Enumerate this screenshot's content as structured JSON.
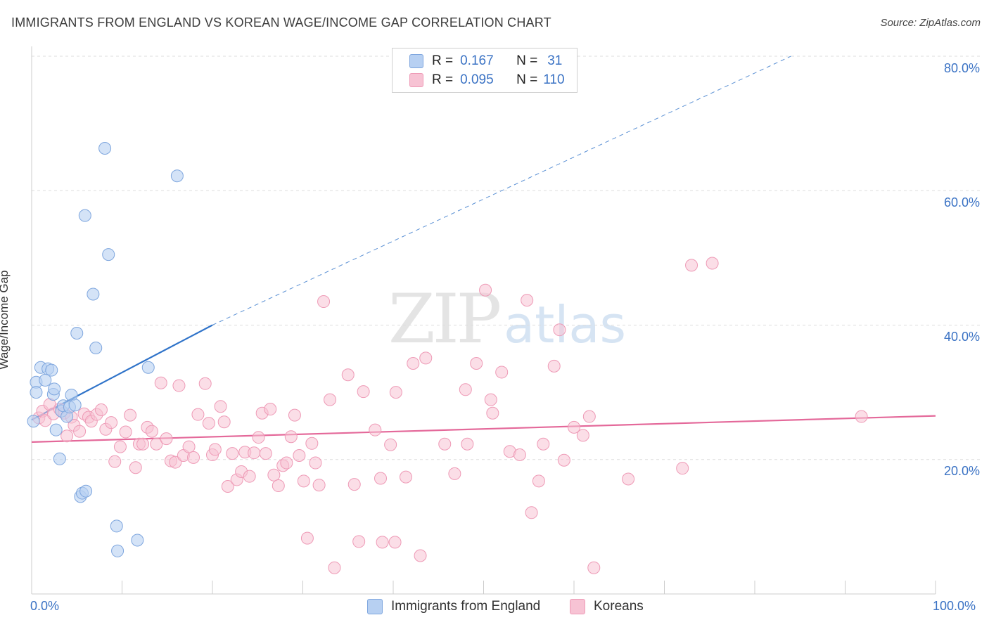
{
  "title": "IMMIGRANTS FROM ENGLAND VS KOREAN WAGE/INCOME GAP CORRELATION CHART",
  "source": "Source: ZipAtlas.com",
  "watermark": {
    "zip": "ZIP",
    "atlas": "atlas"
  },
  "legend": {
    "r_label": "R =",
    "n_label": "N =",
    "rows": [
      {
        "r": "0.167",
        "n": "31"
      },
      {
        "r": "0.095",
        "n": "110"
      }
    ]
  },
  "colors": {
    "blue_fill": "#b7d0f2",
    "blue_stroke": "#7ea6de",
    "blue_line": "#2f73c9",
    "pink_fill": "#f7c3d4",
    "pink_stroke": "#ee9ab6",
    "pink_line": "#e4699a",
    "axis_text": "#3a72c4",
    "grid": "#dddddd"
  },
  "bottom_legend": [
    "Immigrants from England",
    "Koreans"
  ],
  "chart_data": {
    "type": "scatter",
    "title": "IMMIGRANTS FROM ENGLAND VS KOREAN WAGE/INCOME GAP CORRELATION CHART",
    "xlabel": "",
    "ylabel": "Wage/Income Gap",
    "xlim": [
      0,
      100
    ],
    "ylim": [
      0,
      80
    ],
    "x_tick_labels": [
      "0.0%",
      "100.0%"
    ],
    "y_ticks": [
      20,
      40,
      60,
      80
    ],
    "y_tick_labels": [
      "20.0%",
      "40.0%",
      "60.0%",
      "80.0%"
    ],
    "grid": true,
    "legend_position": "top-center",
    "series": [
      {
        "name": "Immigrants from England",
        "color": "#b7d0f2",
        "r": 0.167,
        "n": 31,
        "trend": {
          "x": [
            0,
            20
          ],
          "y": [
            25.9,
            40.0
          ],
          "dashed_extension_to": [
            84,
            80.0
          ]
        },
        "points": [
          [
            0.2,
            25.7
          ],
          [
            0.5,
            31.5
          ],
          [
            1.0,
            33.7
          ],
          [
            1.5,
            31.8
          ],
          [
            1.8,
            33.5
          ],
          [
            2.2,
            33.3
          ],
          [
            2.4,
            29.7
          ],
          [
            2.5,
            30.5
          ],
          [
            2.7,
            24.4
          ],
          [
            3.1,
            20.1
          ],
          [
            3.3,
            27.2
          ],
          [
            3.5,
            28.0
          ],
          [
            3.9,
            26.4
          ],
          [
            4.2,
            27.8
          ],
          [
            4.4,
            29.6
          ],
          [
            4.8,
            28.1
          ],
          [
            5.0,
            38.8
          ],
          [
            5.4,
            14.5
          ],
          [
            5.6,
            15.0
          ],
          [
            6.0,
            15.3
          ],
          [
            5.9,
            56.3
          ],
          [
            6.8,
            44.6
          ],
          [
            7.1,
            36.6
          ],
          [
            8.1,
            66.3
          ],
          [
            8.5,
            50.5
          ],
          [
            9.4,
            10.1
          ],
          [
            9.5,
            6.4
          ],
          [
            11.7,
            8.0
          ],
          [
            12.9,
            33.7
          ],
          [
            16.1,
            62.2
          ],
          [
            0.5,
            30.0
          ]
        ]
      },
      {
        "name": "Koreans",
        "color": "#f7c3d4",
        "r": 0.095,
        "n": 110,
        "trend": {
          "x": [
            0,
            100
          ],
          "y": [
            22.6,
            26.5
          ]
        },
        "points": [
          [
            0.8,
            26.2
          ],
          [
            1.2,
            27.2
          ],
          [
            1.5,
            25.8
          ],
          [
            2.0,
            28.2
          ],
          [
            2.4,
            26.8
          ],
          [
            3.1,
            27.5
          ],
          [
            3.6,
            26.9
          ],
          [
            3.9,
            23.5
          ],
          [
            4.4,
            26.3
          ],
          [
            4.7,
            25.1
          ],
          [
            5.3,
            24.2
          ],
          [
            5.8,
            26.8
          ],
          [
            6.3,
            26.3
          ],
          [
            6.6,
            25.7
          ],
          [
            7.2,
            26.7
          ],
          [
            7.7,
            27.4
          ],
          [
            8.2,
            24.5
          ],
          [
            8.8,
            25.5
          ],
          [
            9.2,
            19.7
          ],
          [
            9.8,
            21.9
          ],
          [
            10.4,
            24.1
          ],
          [
            10.9,
            26.6
          ],
          [
            11.5,
            18.8
          ],
          [
            11.9,
            22.3
          ],
          [
            12.3,
            22.3
          ],
          [
            12.8,
            24.8
          ],
          [
            13.3,
            24.2
          ],
          [
            13.8,
            22.3
          ],
          [
            14.3,
            31.4
          ],
          [
            14.9,
            23.1
          ],
          [
            15.4,
            19.8
          ],
          [
            15.9,
            19.6
          ],
          [
            16.3,
            31.0
          ],
          [
            16.8,
            20.6
          ],
          [
            17.4,
            21.9
          ],
          [
            17.9,
            20.3
          ],
          [
            18.4,
            26.7
          ],
          [
            19.2,
            31.3
          ],
          [
            19.6,
            25.4
          ],
          [
            20.0,
            20.7
          ],
          [
            20.3,
            21.5
          ],
          [
            20.9,
            27.9
          ],
          [
            21.3,
            25.6
          ],
          [
            21.7,
            16.0
          ],
          [
            22.2,
            20.9
          ],
          [
            22.7,
            17.0
          ],
          [
            23.2,
            18.2
          ],
          [
            23.6,
            21.1
          ],
          [
            24.1,
            17.5
          ],
          [
            24.6,
            21.0
          ],
          [
            25.1,
            23.3
          ],
          [
            25.5,
            26.9
          ],
          [
            25.9,
            20.9
          ],
          [
            26.4,
            27.5
          ],
          [
            26.8,
            17.7
          ],
          [
            27.3,
            16.1
          ],
          [
            27.8,
            19.1
          ],
          [
            28.2,
            19.5
          ],
          [
            28.7,
            23.4
          ],
          [
            29.1,
            26.6
          ],
          [
            29.6,
            20.6
          ],
          [
            30.1,
            16.8
          ],
          [
            30.5,
            8.3
          ],
          [
            31.0,
            22.4
          ],
          [
            31.4,
            19.5
          ],
          [
            31.8,
            16.2
          ],
          [
            32.3,
            43.5
          ],
          [
            33.0,
            28.9
          ],
          [
            33.5,
            3.9
          ],
          [
            35.0,
            32.6
          ],
          [
            35.7,
            16.3
          ],
          [
            36.2,
            7.8
          ],
          [
            36.7,
            30.1
          ],
          [
            38.0,
            24.4
          ],
          [
            38.6,
            17.2
          ],
          [
            38.8,
            7.7
          ],
          [
            39.7,
            22.2
          ],
          [
            40.2,
            7.7
          ],
          [
            40.3,
            30.0
          ],
          [
            41.4,
            17.4
          ],
          [
            42.2,
            34.3
          ],
          [
            43.0,
            5.7
          ],
          [
            43.6,
            35.1
          ],
          [
            45.7,
            22.3
          ],
          [
            46.8,
            17.9
          ],
          [
            48.0,
            30.4
          ],
          [
            48.2,
            22.3
          ],
          [
            49.2,
            34.3
          ],
          [
            50.2,
            45.2
          ],
          [
            50.8,
            28.9
          ],
          [
            51.0,
            26.9
          ],
          [
            52.0,
            33.0
          ],
          [
            52.9,
            21.2
          ],
          [
            54.0,
            20.7
          ],
          [
            54.8,
            43.7
          ],
          [
            55.3,
            12.1
          ],
          [
            56.1,
            16.8
          ],
          [
            56.6,
            22.3
          ],
          [
            57.8,
            33.9
          ],
          [
            58.4,
            39.3
          ],
          [
            58.9,
            19.9
          ],
          [
            60.0,
            24.8
          ],
          [
            61.0,
            23.6
          ],
          [
            61.7,
            26.4
          ],
          [
            62.2,
            3.9
          ],
          [
            66.0,
            17.1
          ],
          [
            72.0,
            18.7
          ],
          [
            73.0,
            48.9
          ],
          [
            75.3,
            49.2
          ],
          [
            91.8,
            26.4
          ]
        ]
      }
    ]
  }
}
